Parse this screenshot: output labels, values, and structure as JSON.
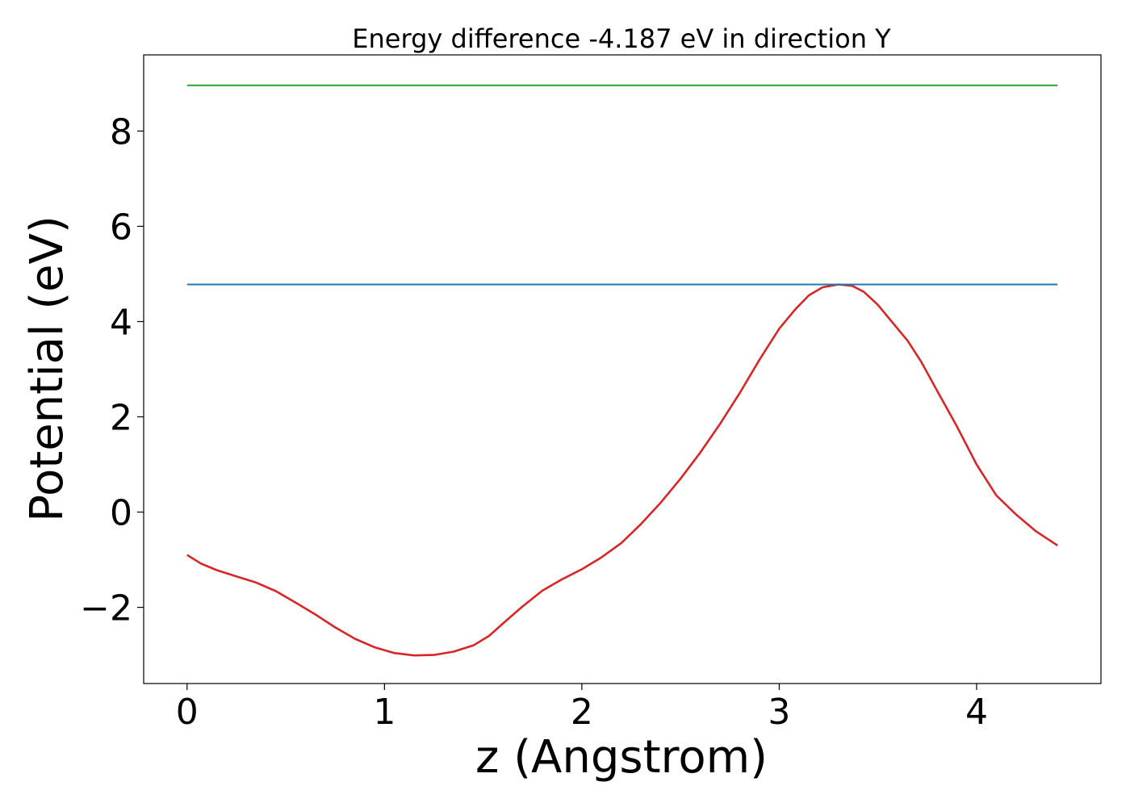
{
  "chart_data": {
    "type": "line",
    "title": "Energy difference -4.187 eV in direction Y",
    "xlabel": "z (Angstrom)",
    "ylabel": "Potential (eV)",
    "xlim": [
      -0.22,
      4.63
    ],
    "ylim": [
      -3.6,
      9.6
    ],
    "xticks": [
      0,
      1,
      2,
      3,
      4
    ],
    "yticks": [
      -2,
      0,
      2,
      4,
      6,
      8
    ],
    "grid": false,
    "series": [
      {
        "color": "#d62728",
        "x": [
          0.0,
          0.07,
          0.15,
          0.25,
          0.35,
          0.45,
          0.55,
          0.65,
          0.75,
          0.85,
          0.95,
          1.05,
          1.15,
          1.25,
          1.35,
          1.45,
          1.53,
          1.6,
          1.7,
          1.8,
          1.9,
          2.0,
          2.1,
          2.2,
          2.3,
          2.4,
          2.5,
          2.6,
          2.7,
          2.8,
          2.9,
          3.0,
          3.08,
          3.15,
          3.22,
          3.3,
          3.37,
          3.43,
          3.5,
          3.57,
          3.65,
          3.72,
          3.8,
          3.9,
          4.0,
          4.1,
          4.2,
          4.3,
          4.41
        ],
        "y": [
          -0.9,
          -1.08,
          -1.22,
          -1.35,
          -1.48,
          -1.66,
          -1.9,
          -2.15,
          -2.42,
          -2.66,
          -2.84,
          -2.96,
          -3.01,
          -3.0,
          -2.93,
          -2.8,
          -2.6,
          -2.34,
          -1.98,
          -1.65,
          -1.41,
          -1.2,
          -0.95,
          -0.65,
          -0.25,
          0.2,
          0.7,
          1.25,
          1.85,
          2.5,
          3.2,
          3.85,
          4.25,
          4.55,
          4.72,
          4.78,
          4.75,
          4.62,
          4.35,
          4.0,
          3.6,
          3.15,
          2.55,
          1.8,
          1.0,
          0.35,
          -0.05,
          -0.4,
          -0.7
        ]
      },
      {
        "color": "#1f77b4",
        "x": [
          0.0,
          4.41
        ],
        "y": [
          4.78,
          4.78
        ]
      },
      {
        "color": "#2ca02c",
        "x": [
          0.0,
          4.41
        ],
        "y": [
          8.96,
          8.96
        ]
      }
    ]
  }
}
